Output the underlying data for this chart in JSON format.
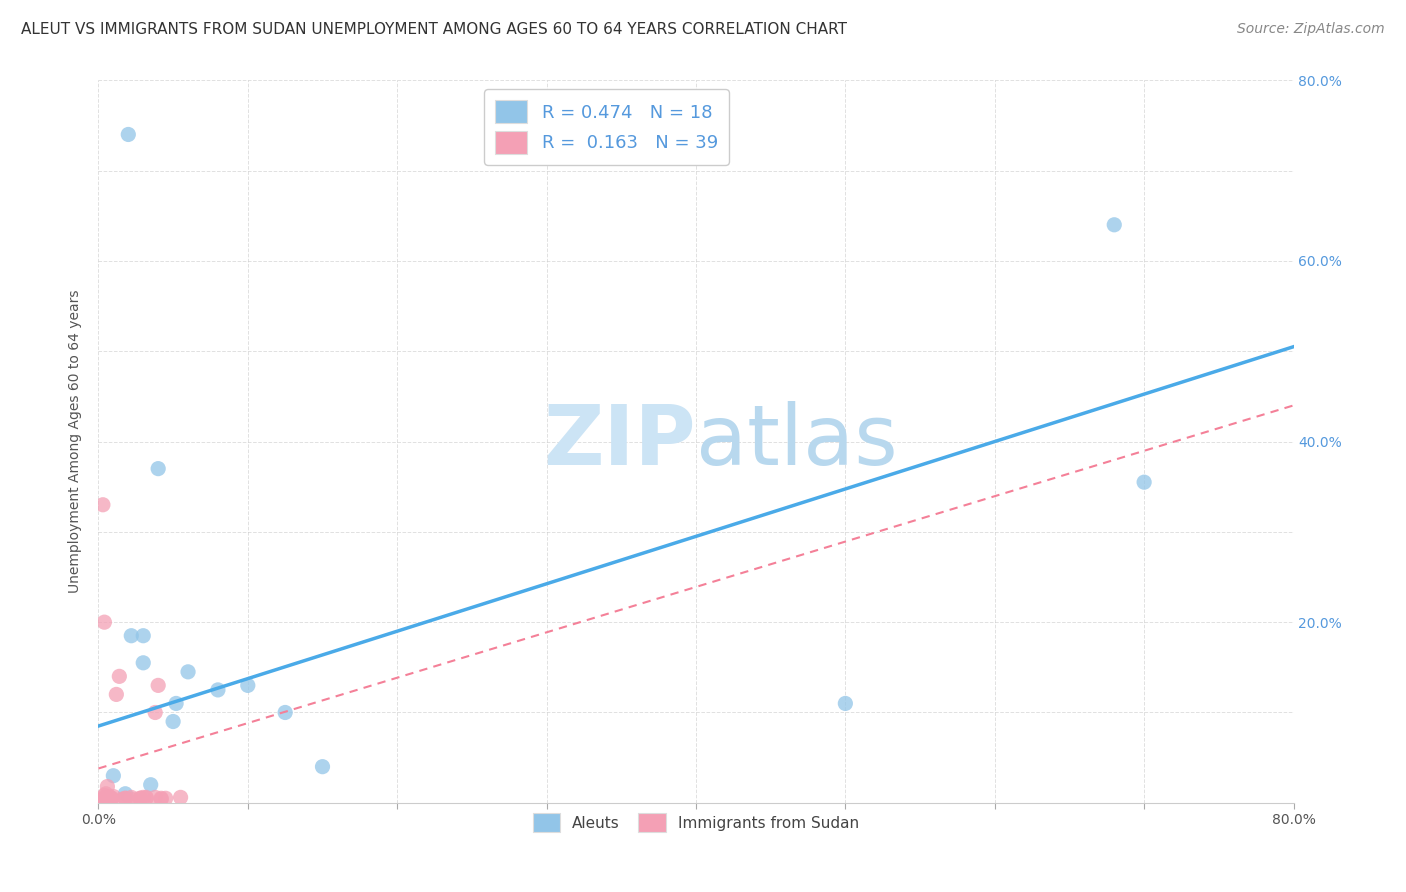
{
  "title": "ALEUT VS IMMIGRANTS FROM SUDAN UNEMPLOYMENT AMONG AGES 60 TO 64 YEARS CORRELATION CHART",
  "source": "Source: ZipAtlas.com",
  "ylabel": "Unemployment Among Ages 60 to 64 years",
  "xlim": [
    0.0,
    0.8
  ],
  "ylim": [
    0.0,
    0.8
  ],
  "aleuts_R": 0.474,
  "aleuts_N": 18,
  "sudan_R": 0.163,
  "sudan_N": 39,
  "aleuts_color": "#92C5E8",
  "sudan_color": "#F4A0B5",
  "aleuts_line_color": "#4AAAE8",
  "sudan_line_color": "#F48098",
  "background_color": "#ffffff",
  "grid_color": "#cccccc",
  "watermark_color": "#cce4f5",
  "right_axis_label_color": "#5599dd",
  "aleuts_x": [
    0.02,
    0.03,
    0.04,
    0.06,
    0.08,
    0.1,
    0.125,
    0.15,
    0.022,
    0.03,
    0.035,
    0.05,
    0.052,
    0.5,
    0.68,
    0.7,
    0.01,
    0.018
  ],
  "aleuts_y": [
    0.74,
    0.185,
    0.37,
    0.145,
    0.125,
    0.13,
    0.1,
    0.04,
    0.185,
    0.155,
    0.02,
    0.09,
    0.11,
    0.11,
    0.64,
    0.355,
    0.03,
    0.01
  ],
  "sudan_x": [
    0.002,
    0.003,
    0.004,
    0.004,
    0.005,
    0.006,
    0.008,
    0.009,
    0.012,
    0.014,
    0.016,
    0.018,
    0.022,
    0.028,
    0.032,
    0.038,
    0.04,
    0.042,
    0.045,
    0.055,
    0.003,
    0.004,
    0.005,
    0.006,
    0.008,
    0.01,
    0.018,
    0.022,
    0.028,
    0.03,
    0.032,
    0.038,
    0.042,
    0.002,
    0.003,
    0.004,
    0.005,
    0.006,
    0.007
  ],
  "sudan_y": [
    0.003,
    0.004,
    0.005,
    0.008,
    0.01,
    0.018,
    0.004,
    0.005,
    0.12,
    0.14,
    0.004,
    0.005,
    0.004,
    0.005,
    0.006,
    0.1,
    0.13,
    0.004,
    0.005,
    0.006,
    0.33,
    0.2,
    0.004,
    0.005,
    0.006,
    0.007,
    0.005,
    0.006,
    0.005,
    0.006,
    0.005,
    0.006,
    0.005,
    0.003,
    0.004,
    0.005,
    0.004,
    0.005,
    0.006
  ],
  "aleuts_line_x0": 0.0,
  "aleuts_line_y0": 0.085,
  "aleuts_line_x1": 0.8,
  "aleuts_line_y1": 0.505,
  "sudan_line_x0": 0.0,
  "sudan_line_y0": 0.038,
  "sudan_line_x1": 0.8,
  "sudan_line_y1": 0.44,
  "title_fontsize": 11,
  "source_fontsize": 10,
  "axis_label_fontsize": 10,
  "tick_fontsize": 10,
  "legend_fontsize": 13,
  "watermark_fontsize": 60
}
